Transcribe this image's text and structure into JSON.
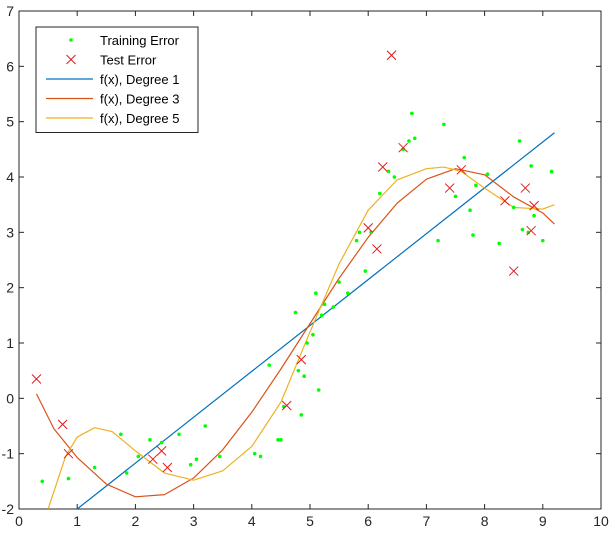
{
  "chart_data": {
    "type": "scatter",
    "title": "",
    "xlabel": "",
    "ylabel": "",
    "xlim": [
      0,
      10
    ],
    "ylim": [
      -2,
      7
    ],
    "xticks": [
      0,
      1,
      2,
      3,
      4,
      5,
      6,
      7,
      8,
      9,
      10
    ],
    "yticks": [
      -2,
      -1,
      0,
      1,
      2,
      3,
      4,
      5,
      6,
      7
    ],
    "grid": false,
    "legend_location": "top-left",
    "series": [
      {
        "name": "Training Error",
        "kind": "points",
        "marker": "dot",
        "color": "#00ff00",
        "x": [
          0.4,
          0.85,
          1.3,
          1.75,
          1.85,
          2.05,
          2.25,
          2.45,
          2.75,
          2.95,
          3.05,
          3.2,
          3.45,
          4.05,
          4.15,
          4.3,
          4.45,
          4.5,
          4.55,
          4.75,
          4.8,
          4.85,
          4.9,
          4.95,
          5.05,
          5.1,
          5.15,
          5.2,
          5.25,
          5.4,
          5.5,
          5.65,
          5.8,
          5.85,
          5.95,
          6.05,
          6.2,
          6.35,
          6.45,
          6.6,
          6.7,
          6.75,
          6.8,
          7.2,
          7.3,
          7.5,
          7.65,
          7.75,
          7.8,
          7.85,
          8.05,
          8.25,
          8.5,
          8.6,
          8.65,
          8.75,
          8.8,
          8.85,
          9.0,
          9.15
        ],
        "y": [
          -1.5,
          -1.45,
          -1.25,
          -0.65,
          -1.35,
          -1.05,
          -0.75,
          -0.8,
          -0.65,
          -1.2,
          -1.1,
          -0.5,
          -1.05,
          -1.0,
          -1.05,
          0.6,
          -0.75,
          -0.75,
          -0.15,
          1.55,
          0.5,
          -0.3,
          0.4,
          1.0,
          1.15,
          1.9,
          0.15,
          1.5,
          1.7,
          1.65,
          2.1,
          1.9,
          2.85,
          3.0,
          2.3,
          3.0,
          3.7,
          4.1,
          4.0,
          4.5,
          4.65,
          5.15,
          4.7,
          2.85,
          4.95,
          3.65,
          4.35,
          3.4,
          2.95,
          3.85,
          4.05,
          2.8,
          3.45,
          4.65,
          3.05,
          3.0,
          4.2,
          3.3,
          2.85,
          4.1
        ]
      },
      {
        "name": "Test Error",
        "kind": "points",
        "marker": "x",
        "color": "#e41a1c",
        "x": [
          0.3,
          0.75,
          0.85,
          2.3,
          2.45,
          2.55,
          4.6,
          4.85,
          6.0,
          6.15,
          6.25,
          6.4,
          6.6,
          7.4,
          7.6,
          8.35,
          8.5,
          8.7,
          8.8,
          8.85
        ],
        "y": [
          0.35,
          -0.47,
          -1.0,
          -1.1,
          -0.95,
          -1.25,
          -0.13,
          0.7,
          3.08,
          2.7,
          4.18,
          6.2,
          4.53,
          3.8,
          4.13,
          3.57,
          2.3,
          3.8,
          3.03,
          3.48
        ]
      },
      {
        "name": "f(x), Degree 1",
        "kind": "line",
        "color": "#0072bd",
        "x": [
          1.0,
          9.2
        ],
        "y": [
          -2.0,
          4.8
        ]
      },
      {
        "name": "f(x), Degree 3",
        "kind": "line",
        "color": "#d95319",
        "x": [
          0.3,
          0.6,
          1.0,
          1.5,
          2.0,
          2.5,
          3.0,
          3.5,
          4.0,
          4.5,
          5.0,
          5.5,
          6.0,
          6.5,
          7.0,
          7.5,
          8.0,
          8.5,
          9.0,
          9.2
        ],
        "y": [
          0.08,
          -0.55,
          -1.07,
          -1.55,
          -1.78,
          -1.74,
          -1.44,
          -0.93,
          -0.25,
          0.53,
          1.35,
          2.17,
          2.91,
          3.53,
          3.96,
          4.15,
          4.04,
          3.64,
          3.35,
          3.15
        ]
      },
      {
        "name": "f(x), Degree 5",
        "kind": "line",
        "color": "#edb120",
        "x": [
          0.5,
          0.8,
          1.0,
          1.3,
          1.6,
          2.0,
          2.5,
          3.0,
          3.5,
          4.0,
          4.5,
          5.0,
          5.5,
          6.0,
          6.5,
          7.0,
          7.3,
          7.6,
          8.0,
          8.5,
          9.0,
          9.2
        ],
        "y": [
          -2.0,
          -1.05,
          -0.7,
          -0.53,
          -0.6,
          -0.95,
          -1.35,
          -1.48,
          -1.31,
          -0.87,
          -0.07,
          1.2,
          2.43,
          3.4,
          3.95,
          4.15,
          4.18,
          4.1,
          3.8,
          3.45,
          3.42,
          3.5
        ]
      }
    ]
  }
}
